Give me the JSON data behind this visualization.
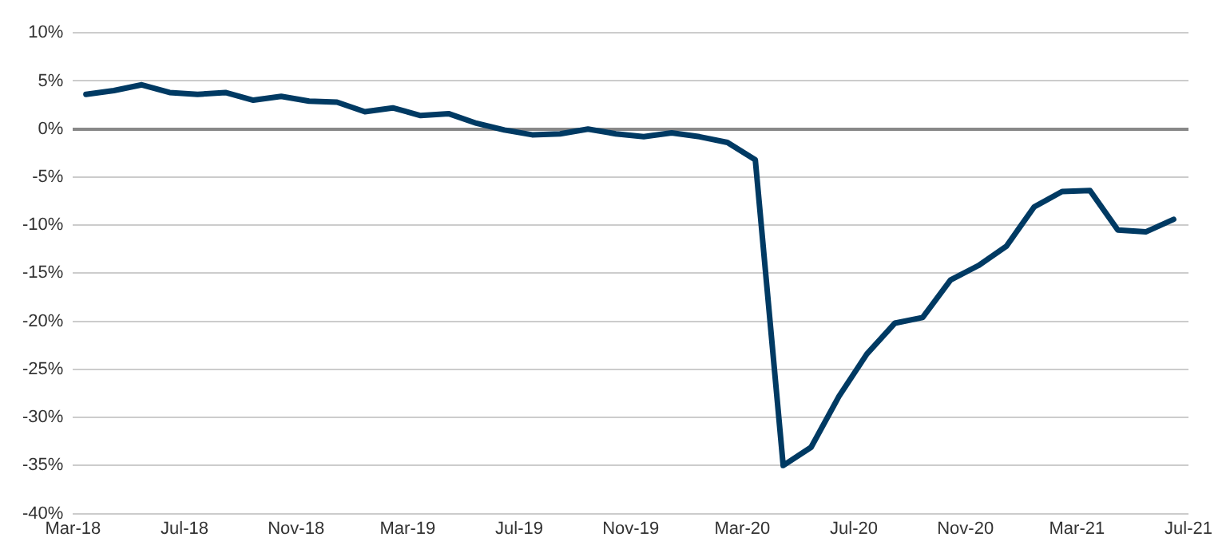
{
  "chart_data": {
    "type": "line",
    "x": [
      "2018-03-15",
      "2018-04-15",
      "2018-05-15",
      "2018-06-15",
      "2018-07-15",
      "2018-08-15",
      "2018-09-15",
      "2018-10-15",
      "2018-11-15",
      "2018-12-15",
      "2019-01-15",
      "2019-02-15",
      "2019-03-15",
      "2019-04-15",
      "2019-05-15",
      "2019-06-15",
      "2019-07-15",
      "2019-08-15",
      "2019-09-15",
      "2019-10-15",
      "2019-11-15",
      "2019-12-15",
      "2020-01-15",
      "2020-02-15",
      "2020-03-15",
      "2020-04-15",
      "2020-05-15",
      "2020-06-15",
      "2020-07-15",
      "2020-08-15",
      "2020-09-15",
      "2020-10-15",
      "2020-11-15",
      "2020-12-15",
      "2021-01-15",
      "2021-02-15",
      "2021-03-15",
      "2021-04-15",
      "2021-05-15",
      "2021-06-15"
    ],
    "series": [
      {
        "color": "#003a63",
        "values": [
          3.6,
          4.0,
          4.6,
          3.8,
          3.6,
          3.8,
          3.0,
          3.4,
          2.9,
          2.8,
          1.8,
          2.2,
          1.4,
          1.6,
          0.6,
          -0.1,
          -0.6,
          -0.5,
          0,
          -0.5,
          -0.8,
          -0.4,
          -0.8,
          -1.4,
          -3.2,
          -35,
          -33.1,
          -27.8,
          -23.4,
          -20.2,
          -19.6,
          -15.7,
          -14.2,
          -12.2,
          -8.1,
          -6.5,
          -6.4,
          -10.5,
          -10.7,
          -9.4
        ]
      }
    ],
    "xlim": [
      "2018-03",
      "2021-07"
    ],
    "xticks": [
      {
        "value": "2018-03",
        "label": "Mar-18"
      },
      {
        "value": "2018-07",
        "label": "Jul-18"
      },
      {
        "value": "2018-11",
        "label": "Nov-18"
      },
      {
        "value": "2019-03",
        "label": "Mar-19"
      },
      {
        "value": "2019-07",
        "label": "Jul-19"
      },
      {
        "value": "2019-11",
        "label": "Nov-19"
      },
      {
        "value": "2020-03",
        "label": "Mar-20"
      },
      {
        "value": "2020-07",
        "label": "Jul-20"
      },
      {
        "value": "2020-11",
        "label": "Nov-20"
      },
      {
        "value": "2021-03",
        "label": "Mar-21"
      },
      {
        "value": "2021-07",
        "label": "Jul-21"
      }
    ],
    "ylim": [
      -40,
      10
    ],
    "yticks": [
      {
        "value": 10,
        "label": "10%"
      },
      {
        "value": 5,
        "label": "5%"
      },
      {
        "value": 0,
        "label": "0%"
      },
      {
        "value": -5,
        "label": "-5%"
      },
      {
        "value": -10,
        "label": "-10%"
      },
      {
        "value": -15,
        "label": "-15%"
      },
      {
        "value": -20,
        "label": "-20%"
      },
      {
        "value": -25,
        "label": "-25%"
      },
      {
        "value": -30,
        "label": "-30%"
      },
      {
        "value": -35,
        "label": "-35%"
      },
      {
        "value": -40,
        "label": "-40%"
      }
    ],
    "grid": "y",
    "legend": false,
    "marker": "none",
    "line_style": "solid"
  }
}
